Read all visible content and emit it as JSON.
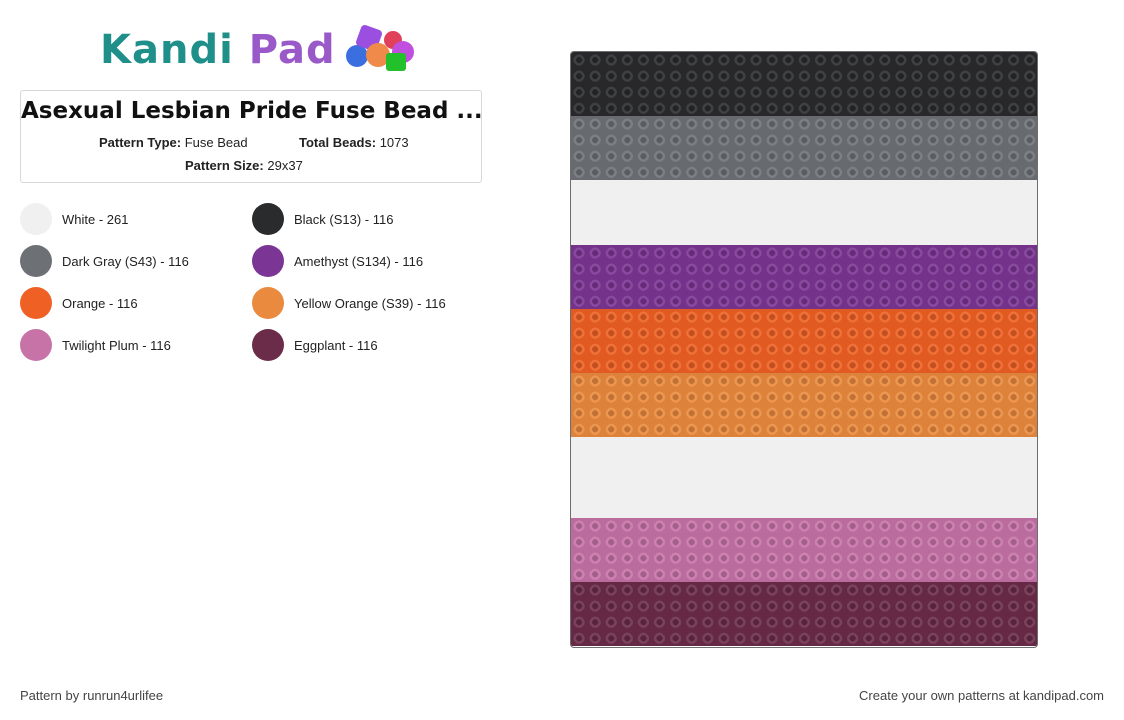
{
  "brand": {
    "logo_text_1": "Kandi",
    "logo_text_2": "Pad"
  },
  "pattern": {
    "title": "Asexual Lesbian Pride Fuse Bead ...",
    "type_label": "Pattern Type:",
    "type_value": "Fuse Bead",
    "total_label": "Total Beads:",
    "total_value": "1073",
    "size_label": "Pattern Size:",
    "size_value": "29x37"
  },
  "legend": [
    {
      "label": "White - 261",
      "color": "#f0f0f0"
    },
    {
      "label": "Black (S13) - 116",
      "color": "#2a2b2d"
    },
    {
      "label": "Dark Gray (S43) - 116",
      "color": "#6d7176"
    },
    {
      "label": "Amethyst (S134) - 116",
      "color": "#7b3594"
    },
    {
      "label": "Orange - 116",
      "color": "#ee6024"
    },
    {
      "label": "Yellow Orange (S39) - 116",
      "color": "#ea8a3e"
    },
    {
      "label": "Twilight Plum - 116",
      "color": "#c773a8"
    },
    {
      "label": "Eggplant - 116",
      "color": "#6b2c4a"
    }
  ],
  "stripes": [
    {
      "color": "#2a2b2d",
      "rows": 4
    },
    {
      "color": "#6d7176",
      "rows": 4
    },
    {
      "color": "#f0f0f0",
      "rows": 4
    },
    {
      "color": "#7b3594",
      "rows": 4
    },
    {
      "color": "#ee6024",
      "rows": 4
    },
    {
      "color": "#ea8a3e",
      "rows": 4
    },
    {
      "color": "#f0f0f0",
      "rows": 5
    },
    {
      "color": "#c773a8",
      "rows": 4
    },
    {
      "color": "#6b2c4a",
      "rows": 4
    }
  ],
  "footer": {
    "credit": "Pattern by runrun4urlifee",
    "cta": "Create your own patterns at kandipad.com"
  }
}
